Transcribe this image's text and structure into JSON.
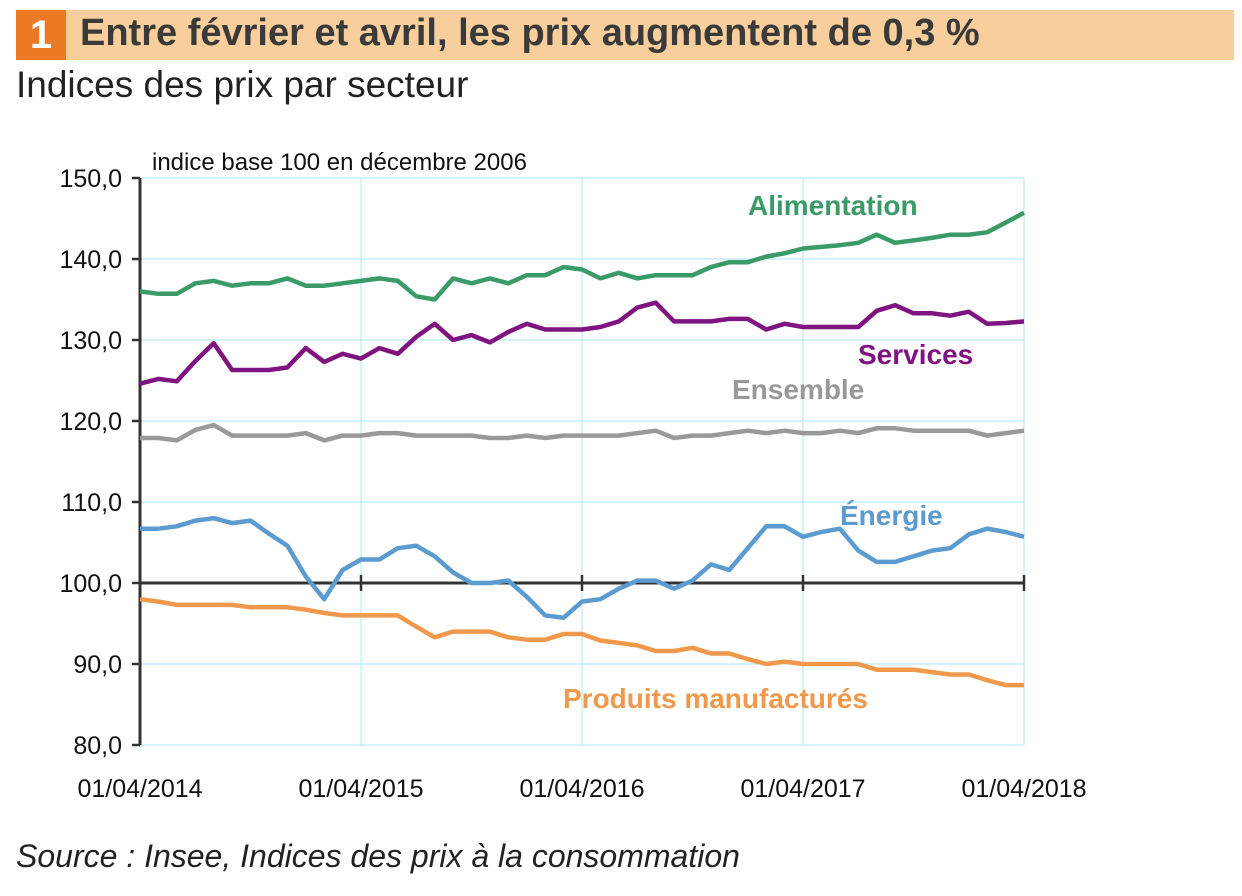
{
  "header": {
    "number": "1",
    "title": "Entre février et avril, les prix augmentent de 0,3 %",
    "subtitle": "Indices des prix par secteur"
  },
  "source": "Source : Insee, Indices des prix à la consommation",
  "chart_data": {
    "type": "line",
    "unit_label": "indice base 100 en décembre 2006",
    "x_start": "2014-04",
    "x_end": "2018-04",
    "frequency": "monthly",
    "x_tick_labels": [
      "01/04/2014",
      "01/04/2015",
      "01/04/2016",
      "01/04/2017",
      "01/04/2018"
    ],
    "y_tick_labels": [
      "80,0",
      "90,0",
      "100,0",
      "110,0",
      "120,0",
      "130,0",
      "140,0",
      "150,0"
    ],
    "ylim": [
      80,
      150
    ],
    "grid": true,
    "baseline": 100,
    "series": [
      {
        "name": "Alimentation",
        "color": "#3a9a68",
        "values": [
          136.0,
          135.7,
          135.7,
          137.0,
          137.3,
          136.7,
          137.0,
          137.0,
          137.6,
          136.7,
          136.7,
          137.0,
          137.3,
          137.6,
          137.3,
          135.4,
          135.0,
          137.6,
          137.0,
          137.6,
          137.0,
          138.0,
          138.0,
          139.0,
          138.7,
          137.6,
          138.3,
          137.6,
          138.0,
          138.0,
          138.0,
          139.0,
          139.6,
          139.6,
          140.3,
          140.7,
          141.3,
          141.5,
          141.7,
          142.0,
          143.0,
          142.0,
          142.3,
          142.6,
          143.0,
          143.0,
          143.3,
          144.5,
          145.7
        ]
      },
      {
        "name": "Services",
        "color": "#7f1480",
        "values": [
          124.6,
          125.2,
          124.9,
          127.4,
          129.6,
          126.3,
          126.3,
          126.3,
          126.6,
          129.0,
          127.3,
          128.3,
          127.7,
          129.0,
          128.3,
          130.4,
          132.0,
          130.0,
          130.6,
          129.7,
          131.0,
          132.0,
          131.3,
          131.3,
          131.3,
          131.6,
          132.3,
          134.0,
          134.6,
          132.3,
          132.3,
          132.3,
          132.6,
          132.6,
          131.3,
          132.0,
          131.6,
          131.6,
          131.6,
          131.6,
          133.6,
          134.3,
          133.3,
          133.3,
          133.0,
          133.5,
          132.0,
          132.1,
          132.3
        ]
      },
      {
        "name": "Ensemble",
        "color": "#999999",
        "values": [
          117.9,
          117.9,
          117.6,
          118.9,
          119.5,
          118.2,
          118.2,
          118.2,
          118.2,
          118.5,
          117.6,
          118.2,
          118.2,
          118.5,
          118.5,
          118.2,
          118.2,
          118.2,
          118.2,
          117.9,
          117.9,
          118.2,
          117.9,
          118.2,
          118.2,
          118.2,
          118.2,
          118.5,
          118.8,
          117.9,
          118.2,
          118.2,
          118.5,
          118.8,
          118.5,
          118.8,
          118.5,
          118.5,
          118.8,
          118.5,
          119.1,
          119.1,
          118.8,
          118.8,
          118.8,
          118.8,
          118.2,
          118.5,
          118.8
        ]
      },
      {
        "name": "Énergie",
        "color": "#5b9bd0",
        "values": [
          106.7,
          106.7,
          107.0,
          107.7,
          108.0,
          107.4,
          107.7,
          106.1,
          104.6,
          100.8,
          98.0,
          101.6,
          102.9,
          102.9,
          104.3,
          104.6,
          103.3,
          101.3,
          100.0,
          100.0,
          100.3,
          98.3,
          96.0,
          95.7,
          97.7,
          98.0,
          99.3,
          100.3,
          100.3,
          99.3,
          100.3,
          102.3,
          101.6,
          104.3,
          107.0,
          107.0,
          105.7,
          106.3,
          106.7,
          104.0,
          102.6,
          102.6,
          103.3,
          104.0,
          104.3,
          106.0,
          106.7,
          106.3,
          105.7
        ]
      },
      {
        "name": "Produits manufacturés",
        "color": "#f0994c",
        "values": [
          98.0,
          97.7,
          97.3,
          97.3,
          97.3,
          97.3,
          97.0,
          97.0,
          97.0,
          96.7,
          96.3,
          96.0,
          96.0,
          96.0,
          96.0,
          94.6,
          93.3,
          94.0,
          94.0,
          94.0,
          93.3,
          93.0,
          93.0,
          93.7,
          93.7,
          92.9,
          92.6,
          92.3,
          91.6,
          91.6,
          92.0,
          91.3,
          91.3,
          90.6,
          90.0,
          90.3,
          90.0,
          90.0,
          90.0,
          90.0,
          89.3,
          89.3,
          89.3,
          89.0,
          88.7,
          88.7,
          88.0,
          87.4,
          87.4
        ]
      }
    ]
  }
}
